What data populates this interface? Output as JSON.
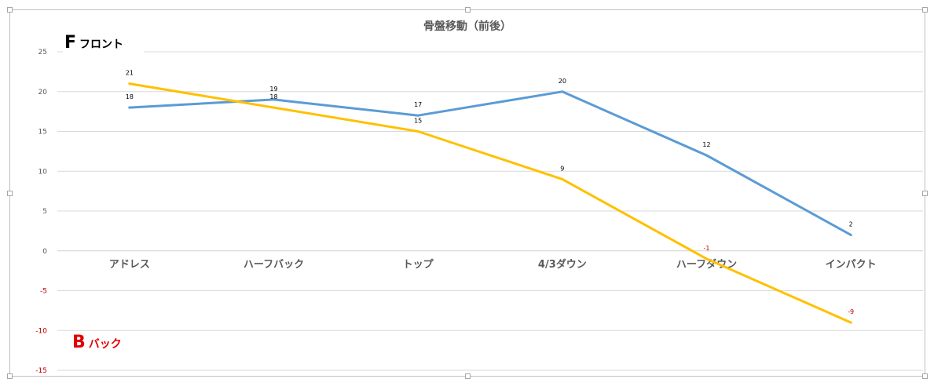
{
  "chart_data": {
    "type": "line",
    "title": "骨盤移動（前後）",
    "categories": [
      "アドレス",
      "ハーフバック",
      "トップ",
      "4/3ダウン",
      "ハーフダウン",
      "インパクト"
    ],
    "series": [
      {
        "values": [
          18,
          19,
          17,
          20,
          12,
          2
        ],
        "color": "#5b9bd5"
      },
      {
        "values": [
          21,
          18,
          15,
          9,
          -1,
          -9
        ],
        "color": "#ffc000"
      }
    ],
    "ylim": [
      -15,
      25
    ],
    "yticks": [
      25,
      20,
      15,
      10,
      5,
      0,
      -5,
      -10,
      -15
    ],
    "grid": true,
    "negative_label_color": "#c00000",
    "label_color": "#000000"
  },
  "annotations": {
    "front": {
      "letter": "F",
      "text": "フロント",
      "color": "#000000"
    },
    "back": {
      "letter": "B",
      "text": "バック",
      "color": "#e00000"
    }
  }
}
